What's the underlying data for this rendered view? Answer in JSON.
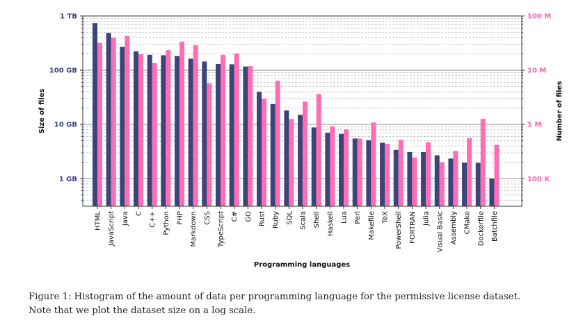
{
  "chart_data": {
    "type": "bar",
    "title": "",
    "xlabel": "Programming languages",
    "ylabel": "Size of files",
    "y2label": "Number of files",
    "yscale": "log",
    "y2scale": "log",
    "ylim_gb": [
      0.31,
      1000
    ],
    "y2lim_millions": [
      0.031,
      100
    ],
    "yticks": [
      {
        "value": 1,
        "label": "1 GB"
      },
      {
        "value": 10,
        "label": "10 GB"
      },
      {
        "value": 100,
        "label": "100 GB"
      },
      {
        "value": 1000,
        "label": "1 TB"
      }
    ],
    "y2ticks": [
      {
        "value": 0.1,
        "label": "100 K"
      },
      {
        "value": 1,
        "label": "1 M"
      },
      {
        "value": 10,
        "label": "10 M"
      },
      {
        "value": 100,
        "label": "100 M"
      }
    ],
    "grid": true,
    "colors": {
      "size": "#3c4479",
      "files": "#ff6eb4"
    },
    "categories": [
      "HTML",
      "JavaScript",
      "Java",
      "C",
      "C++",
      "Python",
      "PHP",
      "Markdown",
      "CSS",
      "TypeScript",
      "C#",
      "GO",
      "Rust",
      "Ruby",
      "SQL",
      "Scala",
      "Shell",
      "Haskell",
      "Lua",
      "Perl",
      "Makefile",
      "TeX",
      "PowerShell",
      "FORTRAN",
      "Julia",
      "Visual Basic",
      "Assembly",
      "CMake",
      "Dockerfile",
      "Batchfile"
    ],
    "series": [
      {
        "axis": "left",
        "unit": "GB",
        "values": [
          741,
          484,
          269,
          223,
          193,
          189,
          182,
          163,
          145,
          131,
          129,
          117,
          40,
          23.8,
          18.1,
          15,
          8.8,
          7.0,
          6.7,
          5.5,
          5.1,
          4.6,
          3.4,
          3.1,
          3.1,
          2.7,
          2.35,
          1.97,
          1.95,
          1.0
        ]
      },
      {
        "axis": "right",
        "unit": "M files",
        "values": [
          32,
          39.5,
          42.7,
          19.7,
          13.5,
          23.5,
          33.7,
          28.8,
          5.7,
          19.3,
          20.3,
          11.9,
          3.0,
          6.4,
          1.26,
          2.63,
          3.63,
          0.92,
          0.81,
          0.55,
          1.09,
          0.44,
          0.52,
          0.245,
          0.47,
          0.2,
          0.325,
          0.56,
          1.27,
          0.42
        ]
      }
    ]
  },
  "caption": {
    "line1": "Figure 1:  Histogram of the amount of data per programming language for the permissive license dataset.",
    "line2": "Note that we plot the dataset size on a log scale."
  }
}
